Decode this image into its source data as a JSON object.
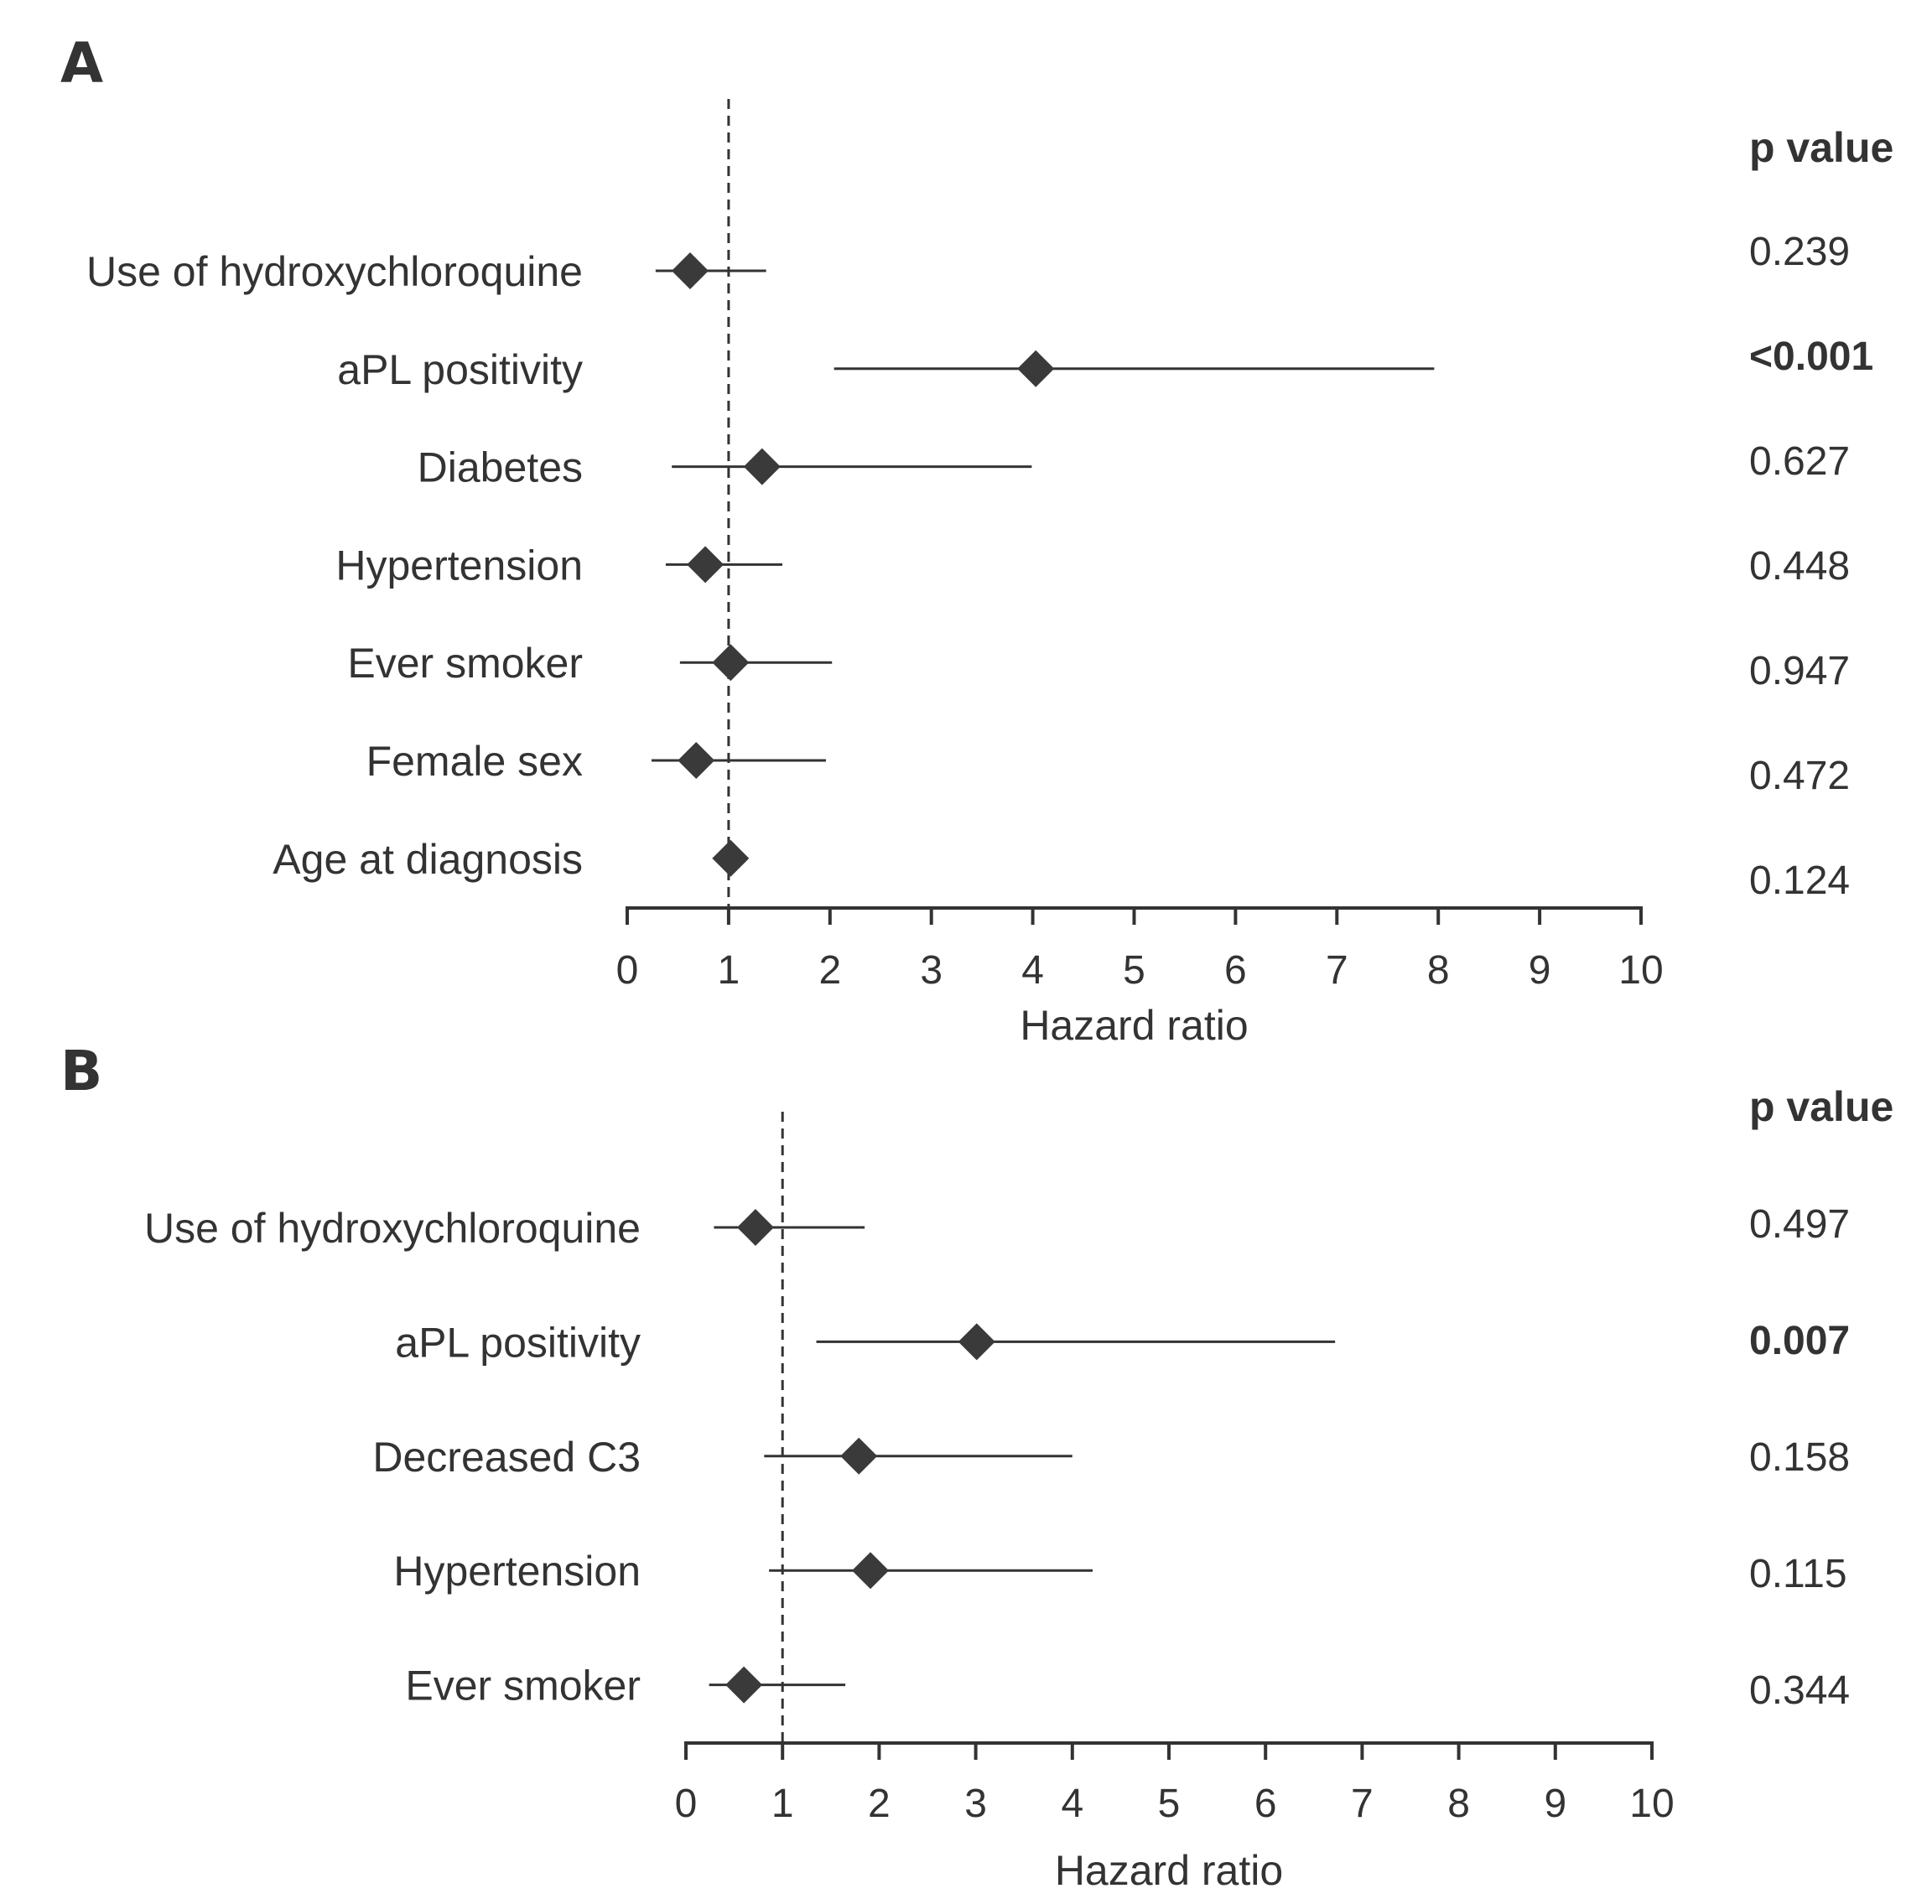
{
  "chart_data": [
    {
      "type": "forest",
      "panel": "A",
      "xlabel": "Hazard ratio",
      "xlim": [
        0,
        10
      ],
      "xticks": [
        0,
        1,
        2,
        3,
        4,
        5,
        6,
        7,
        8,
        9,
        10
      ],
      "reference_line": 1,
      "pvalue_header": "p value",
      "rows": [
        {
          "label": "Use of hydroxychloroquine",
          "hr": 0.62,
          "lower": 0.28,
          "upper": 1.37,
          "p": "0.239",
          "bold": false
        },
        {
          "label": "aPL positivity",
          "hr": 4.03,
          "lower": 2.04,
          "upper": 7.96,
          "p": "<0.001",
          "bold": true
        },
        {
          "label": "Diabetes",
          "hr": 1.33,
          "lower": 0.44,
          "upper": 3.99,
          "p": "0.627",
          "bold": false
        },
        {
          "label": "Hypertension",
          "hr": 0.77,
          "lower": 0.38,
          "upper": 1.53,
          "p": "0.448",
          "bold": false
        },
        {
          "label": "Ever smoker",
          "hr": 1.02,
          "lower": 0.52,
          "upper": 2.02,
          "p": "0.947",
          "bold": false
        },
        {
          "label": "Female sex",
          "hr": 0.68,
          "lower": 0.24,
          "upper": 1.96,
          "p": "0.472",
          "bold": false
        },
        {
          "label": "Age at diagnosis",
          "hr": 1.02,
          "lower": 0.99,
          "upper": 1.05,
          "p": "0.124",
          "bold": false
        }
      ]
    },
    {
      "type": "forest",
      "panel": "B",
      "xlabel": "Hazard ratio",
      "xlim": [
        0,
        10
      ],
      "xticks": [
        0,
        1,
        2,
        3,
        4,
        5,
        6,
        7,
        8,
        9,
        10
      ],
      "reference_line": 1,
      "pvalue_header": "p value",
      "rows": [
        {
          "label": "Use of hydroxychloroquine",
          "hr": 0.72,
          "lower": 0.29,
          "upper": 1.85,
          "p": "0.497",
          "bold": false
        },
        {
          "label": "aPL positivity",
          "hr": 3.01,
          "lower": 1.35,
          "upper": 6.72,
          "p": "0.007",
          "bold": true
        },
        {
          "label": "Decreased C3",
          "hr": 1.79,
          "lower": 0.81,
          "upper": 4.0,
          "p": "0.158",
          "bold": false
        },
        {
          "label": "Hypertension",
          "hr": 1.91,
          "lower": 0.86,
          "upper": 4.21,
          "p": "0.115",
          "bold": false
        },
        {
          "label": "Ever smoker",
          "hr": 0.6,
          "lower": 0.24,
          "upper": 1.65,
          "p": "0.344",
          "bold": false
        }
      ]
    }
  ]
}
